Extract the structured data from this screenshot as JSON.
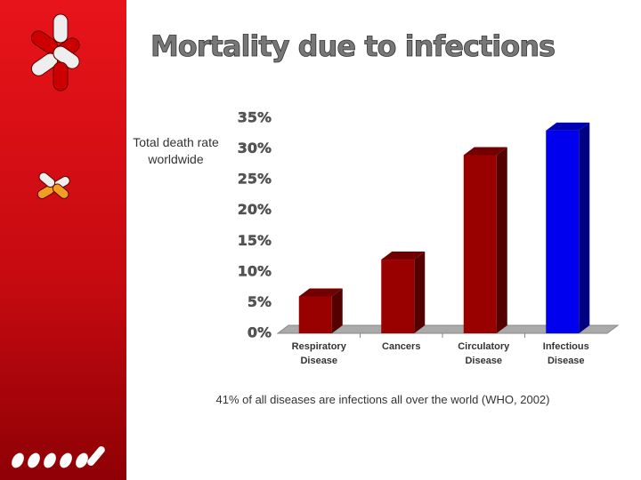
{
  "chart_data": {
    "type": "bar3d",
    "title": "Mortality due to infections",
    "y_label": "Total death rate worldwide",
    "note": "41% of all diseases are infections all over the world (WHO, 2002)",
    "categories": [
      "Respiratory Disease",
      "Cancers",
      "Circulatory Disease",
      "Infectious Disease"
    ],
    "values": [
      6,
      12,
      29,
      33
    ],
    "colors": [
      "#990000",
      "#990000",
      "#990000",
      "#0000ee"
    ],
    "ylim": [
      0,
      35
    ],
    "yticks": [
      {
        "value": 0,
        "label": "0%"
      },
      {
        "value": 5,
        "label": "5%"
      },
      {
        "value": 10,
        "label": "10%"
      },
      {
        "value": 15,
        "label": "15%"
      },
      {
        "value": 20,
        "label": "20%"
      },
      {
        "value": 25,
        "label": "25%"
      },
      {
        "value": 30,
        "label": "30%"
      },
      {
        "value": 35,
        "label": "35%"
      }
    ]
  }
}
